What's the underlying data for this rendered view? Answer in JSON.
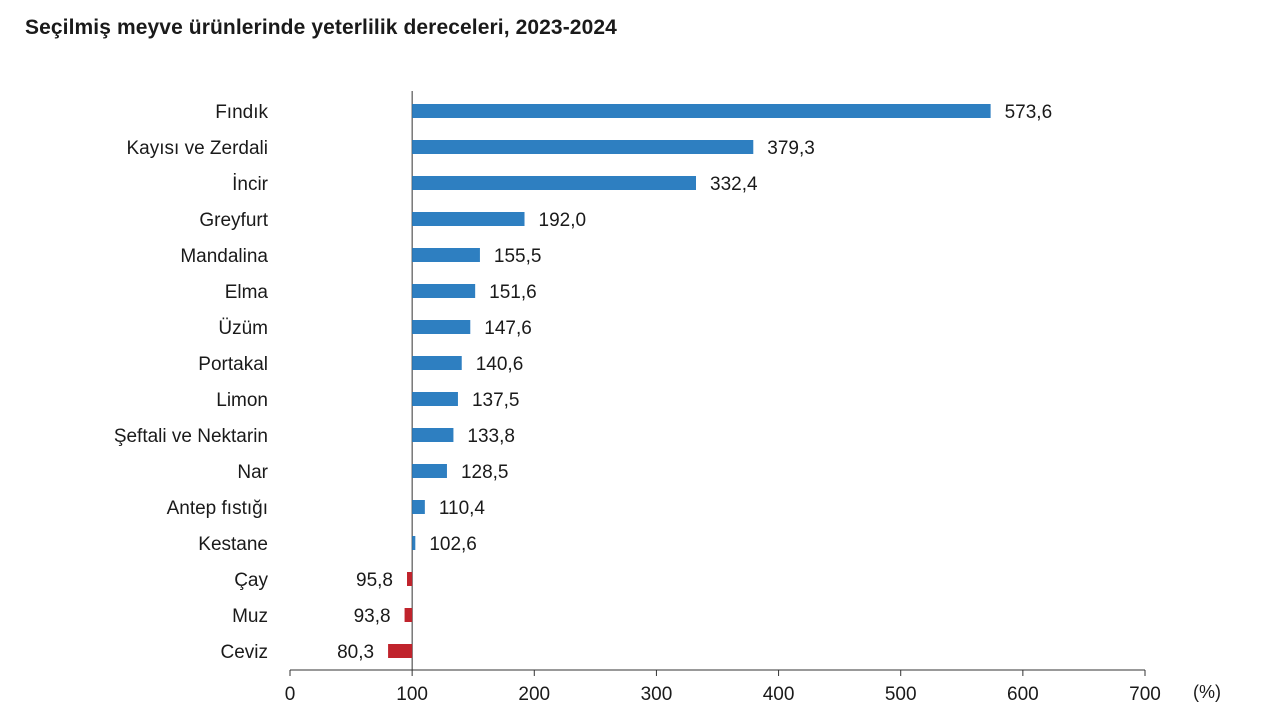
{
  "chart_data": {
    "type": "bar",
    "orientation": "horizontal",
    "title": "Seçilmiş meyve ürünlerinde yeterlilik dereceleri, 2023-2024",
    "xlabel": "(%)",
    "ylabel": "",
    "xlim": [
      0,
      700
    ],
    "x_ticks": [
      0,
      100,
      200,
      300,
      400,
      500,
      600,
      700
    ],
    "baseline": 100,
    "grid": false,
    "legend": "none",
    "categories": [
      "Fındık",
      "Kayısı ve Zerdali",
      "İncir",
      "Greyfurt",
      "Mandalina",
      "Elma",
      "Üzüm",
      "Portakal",
      "Limon",
      "Şeftali ve Nektarin",
      "Nar",
      "Antep fıstığı",
      "Kestane",
      "Çay",
      "Muz",
      "Ceviz"
    ],
    "values": [
      573.6,
      379.3,
      332.4,
      192.0,
      155.5,
      151.6,
      147.6,
      140.6,
      137.5,
      133.8,
      128.5,
      110.4,
      102.6,
      95.8,
      93.8,
      80.3
    ],
    "value_labels": [
      "573,6",
      "379,3",
      "332,4",
      "192,0",
      "155,5",
      "151,6",
      "147,6",
      "140,6",
      "137,5",
      "133,8",
      "128,5",
      "110,4",
      "102,6",
      "95,8",
      "93,8",
      "80,3"
    ],
    "colors": {
      "above_baseline": "#2e7fc1",
      "below_baseline": "#c0232c",
      "axis": "#333333"
    }
  }
}
